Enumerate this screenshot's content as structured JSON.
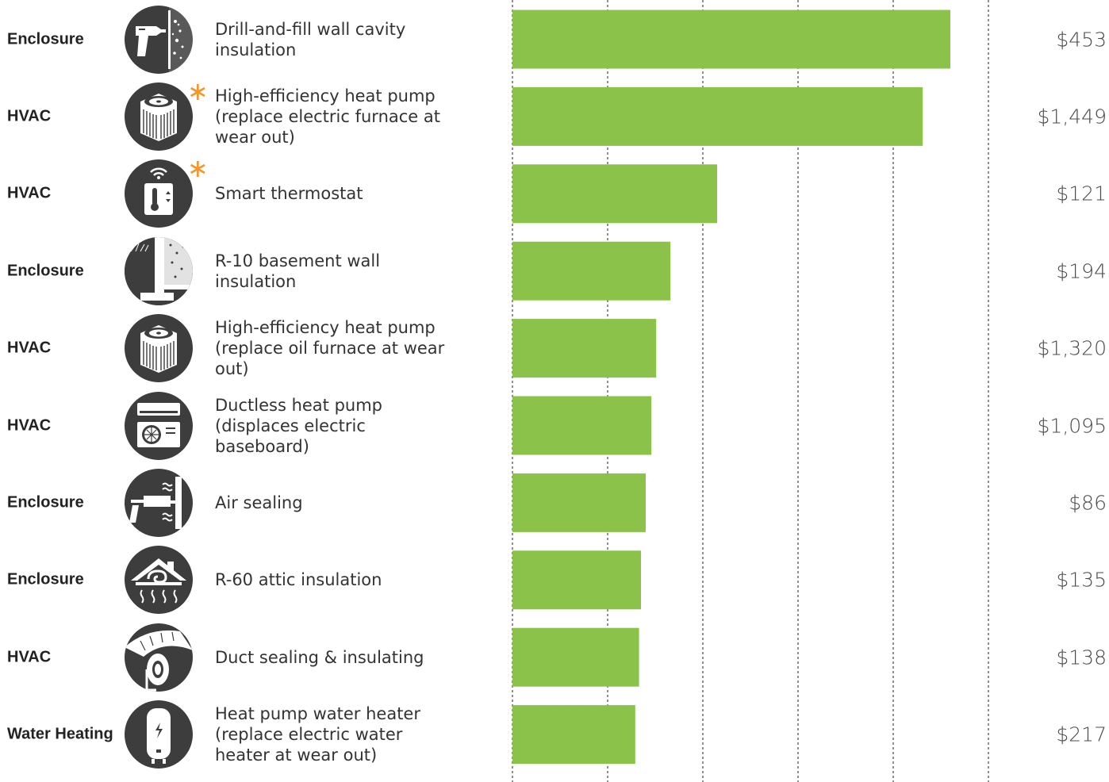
{
  "chart_data": {
    "type": "bar",
    "orientation": "horizontal",
    "bar_color": "#8bc34a",
    "gridlines": true,
    "gridline_style": "dashed",
    "accent_color": "#f5962a",
    "icon_color": "#3d3d3d",
    "rows": [
      {
        "category": "Enclosure",
        "measure": "Drill-and-fill wall cavity insulation",
        "cost": "$453",
        "value": 4.6,
        "icon": "drill-wall-icon",
        "starred": false
      },
      {
        "category": "HVAC",
        "measure": "High-efficiency heat pump (replace electric furnace at wear out)",
        "cost": "$1,449",
        "value": 4.31,
        "icon": "heat-pump-icon",
        "starred": true
      },
      {
        "category": "HVAC",
        "measure": "Smart thermostat",
        "cost": "$121",
        "value": 2.15,
        "icon": "smart-thermostat-icon",
        "starred": true
      },
      {
        "category": "Enclosure",
        "measure": "R-10 basement wall insulation",
        "cost": "$194",
        "value": 1.66,
        "icon": "basement-wall-icon",
        "starred": false
      },
      {
        "category": "HVAC",
        "measure": "High-efficiency heat pump (replace oil furnace at wear out)",
        "cost": "$1,320",
        "value": 1.51,
        "icon": "heat-pump-icon",
        "starred": false
      },
      {
        "category": "HVAC",
        "measure": "Ductless heat pump (displaces electric baseboard)",
        "cost": "$1,095",
        "value": 1.46,
        "icon": "ductless-heat-pump-icon",
        "starred": false
      },
      {
        "category": "Enclosure",
        "measure": "Air sealing",
        "cost": "$86",
        "value": 1.4,
        "icon": "caulk-gun-icon",
        "starred": false
      },
      {
        "category": "Enclosure",
        "measure": "R-60 attic insulation",
        "cost": "$135",
        "value": 1.35,
        "icon": "attic-insulation-icon",
        "starred": false
      },
      {
        "category": "HVAC",
        "measure": "Duct sealing & insulating",
        "cost": "$138",
        "value": 1.33,
        "icon": "duct-tape-icon",
        "starred": false
      },
      {
        "category": "Water Heating",
        "measure": "Heat pump water heater (replace electric water heater at wear out)",
        "cost": "$217",
        "value": 1.29,
        "icon": "water-heater-icon",
        "starred": false
      }
    ],
    "xlim": [
      0,
      5
    ],
    "grid_values": [
      0,
      1,
      2,
      3,
      4,
      5
    ]
  }
}
